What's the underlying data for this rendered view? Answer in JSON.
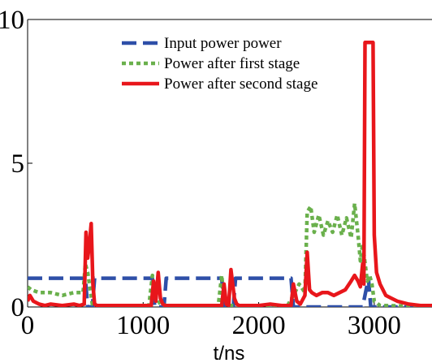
{
  "chart_data": {
    "type": "line",
    "title": "",
    "xlabel": "t/ns",
    "ylabel": "",
    "xlim": [
      0,
      3500
    ],
    "ylim": [
      0,
      10
    ],
    "xticks": [
      0,
      1000,
      2000,
      3000
    ],
    "yticks": [
      0,
      5,
      10
    ],
    "x_tick_labels": [
      "0",
      "1000",
      "2000",
      "3000"
    ],
    "y_tick_labels": [
      "0",
      "5",
      "10"
    ],
    "grid": false,
    "legend_position": "top-center",
    "series": [
      {
        "name": "Input power power",
        "color": "#2e4fa8",
        "style": "dashed",
        "x": [
          0,
          500,
          520,
          560,
          580,
          1080,
          1100,
          1180,
          1200,
          1680,
          1700,
          1780,
          1800,
          2280,
          2300,
          2900,
          2950,
          2970,
          3500
        ],
        "y": [
          1,
          1,
          0,
          0,
          1,
          1,
          0,
          0,
          1,
          1,
          0,
          0,
          1,
          1,
          0,
          0,
          1,
          0,
          0
        ]
      },
      {
        "name": "Power after first stage",
        "color": "#6ab04c",
        "style": "dotted",
        "x": [
          0,
          30,
          100,
          200,
          300,
          400,
          480,
          500,
          520,
          560,
          580,
          1050,
          1080,
          1100,
          1150,
          1200,
          1650,
          1680,
          1700,
          1750,
          2250,
          2300,
          2350,
          2400,
          2420,
          2450,
          2480,
          2520,
          2560,
          2600,
          2640,
          2680,
          2720,
          2760,
          2800,
          2830,
          2860,
          2880,
          2900,
          2940,
          2960,
          2980,
          3000,
          3050,
          3500
        ],
        "y": [
          0.7,
          0.6,
          0.5,
          0.5,
          0.4,
          0.5,
          0.5,
          1.5,
          1.2,
          0.1,
          0.05,
          0.05,
          1.1,
          0.4,
          0.1,
          0.05,
          0.05,
          1.1,
          0.3,
          0.05,
          0.05,
          0.4,
          0.8,
          0.5,
          3.3,
          3.5,
          2.6,
          3.2,
          2.5,
          3.0,
          2.6,
          3.2,
          2.5,
          3.1,
          2.4,
          3.6,
          2.5,
          1.6,
          2.2,
          0.9,
          1.1,
          0.8,
          0.2,
          0.05,
          0.02
        ]
      },
      {
        "name": "Power after second stage",
        "color": "#e8161b",
        "style": "solid",
        "x": [
          0,
          20,
          50,
          100,
          150,
          200,
          300,
          400,
          450,
          490,
          505,
          520,
          535,
          550,
          565,
          580,
          600,
          700,
          800,
          900,
          1000,
          1070,
          1090,
          1110,
          1130,
          1150,
          1170,
          1190,
          1210,
          1300,
          1400,
          1500,
          1600,
          1680,
          1700,
          1720,
          1740,
          1760,
          1790,
          1810,
          1830,
          1900,
          2000,
          2100,
          2200,
          2280,
          2300,
          2330,
          2360,
          2400,
          2420,
          2440,
          2460,
          2500,
          2550,
          2600,
          2650,
          2700,
          2750,
          2800,
          2830,
          2860,
          2880,
          2900,
          2910,
          2920,
          2990,
          3000,
          3020,
          3050,
          3100,
          3150,
          3200,
          3300,
          3400,
          3500
        ],
        "y": [
          0.2,
          0.4,
          0.2,
          0.1,
          0.05,
          0.1,
          0.05,
          0.1,
          0.05,
          0.1,
          2.6,
          1.7,
          2.2,
          2.9,
          0.8,
          0.1,
          0.05,
          0.05,
          0.05,
          0.05,
          0.05,
          0.05,
          0.9,
          0.2,
          1.2,
          0.3,
          0.1,
          0.05,
          0.05,
          0.05,
          0.05,
          0.05,
          0.05,
          0.05,
          0.8,
          0.1,
          0.05,
          1.3,
          0.3,
          0.1,
          0.05,
          0.05,
          0.05,
          0.1,
          0.05,
          0.05,
          0.8,
          0.2,
          0.1,
          0.4,
          1.9,
          0.6,
          0.5,
          0.4,
          0.5,
          0.5,
          0.4,
          0.5,
          0.6,
          0.9,
          1.1,
          0.9,
          0.7,
          1.5,
          0.8,
          9.2,
          9.2,
          2.5,
          1.2,
          0.8,
          0.4,
          0.3,
          0.2,
          0.1,
          0.05,
          0.05
        ]
      }
    ]
  }
}
